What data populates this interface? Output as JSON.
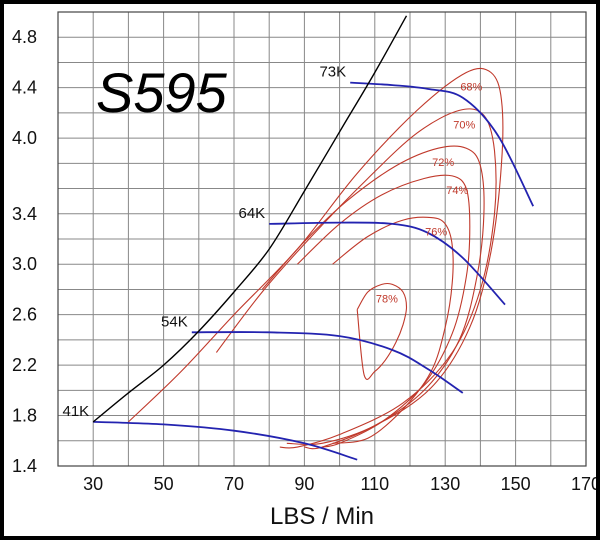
{
  "chart_data": {
    "type": "line",
    "title": "S595",
    "xlabel": "LBS / Min",
    "ylabel": "",
    "xlim": [
      20,
      170
    ],
    "ylim": [
      1.4,
      5.0
    ],
    "xticks": [
      "30",
      "50",
      "70",
      "90",
      "110",
      "130",
      "150",
      "170"
    ],
    "yticks": [
      "1.4",
      "1.8",
      "2.2",
      "2.6",
      "3.0",
      "3.4",
      "4.0",
      "4.4",
      "4.8"
    ],
    "grid": true,
    "colors": {
      "surge": "#000000",
      "efficiency": "#c0392b",
      "speed": "#2323b0"
    },
    "surge_line": {
      "x": [
        30,
        40,
        50,
        60,
        70,
        80,
        90,
        100,
        110,
        119
      ],
      "y": [
        1.75,
        1.98,
        2.2,
        2.47,
        2.78,
        3.12,
        3.58,
        4.05,
        4.52,
        4.97
      ]
    },
    "speed_lines": [
      {
        "label": "41K",
        "x": [
          30,
          50,
          70,
          90,
          105
        ],
        "y": [
          1.75,
          1.73,
          1.68,
          1.58,
          1.45
        ]
      },
      {
        "label": "54K",
        "x": [
          58,
          80,
          100,
          115,
          125,
          135
        ],
        "y": [
          2.46,
          2.46,
          2.43,
          2.32,
          2.17,
          1.98
        ]
      },
      {
        "label": "64K",
        "x": [
          80,
          100,
          115,
          125,
          135,
          147
        ],
        "y": [
          3.32,
          3.33,
          3.32,
          3.25,
          3.05,
          2.68
        ]
      },
      {
        "label": "73K",
        "x": [
          103,
          115,
          125,
          135,
          145,
          155
        ],
        "y": [
          4.44,
          4.42,
          4.39,
          4.32,
          4.02,
          3.46
        ]
      }
    ],
    "efficiency_islands": [
      {
        "label": "78%",
        "x": [
          105,
          108,
          112,
          115,
          118,
          119,
          118,
          116,
          113,
          110,
          107,
          105
        ],
        "y": [
          2.64,
          2.78,
          2.84,
          2.84,
          2.78,
          2.66,
          2.52,
          2.38,
          2.24,
          2.15,
          2.12,
          2.64
        ]
      },
      {
        "label": "76%",
        "x": [
          98,
          108,
          118,
          126,
          130,
          132,
          132,
          130,
          126,
          118,
          108,
          98
        ],
        "y": [
          3.0,
          3.22,
          3.35,
          3.37,
          3.32,
          3.15,
          2.85,
          2.5,
          2.15,
          1.85,
          1.62,
          1.58
        ]
      },
      {
        "label": "74%",
        "x": [
          88,
          100,
          112,
          124,
          132,
          136,
          137,
          136,
          132,
          124,
          112,
          100,
          95
        ],
        "y": [
          3.0,
          3.32,
          3.55,
          3.68,
          3.7,
          3.6,
          3.3,
          2.9,
          2.45,
          2.05,
          1.75,
          1.58,
          1.55
        ]
      },
      {
        "label": "72%",
        "x": [
          78,
          90,
          102,
          116,
          128,
          136,
          140,
          141,
          139,
          134,
          124,
          110,
          95,
          90
        ],
        "y": [
          2.8,
          3.18,
          3.5,
          3.78,
          3.92,
          3.92,
          3.78,
          3.4,
          2.9,
          2.4,
          2.0,
          1.72,
          1.55,
          1.55
        ]
      },
      {
        "label": "70%",
        "x": [
          65,
          78,
          92,
          108,
          122,
          134,
          141,
          144,
          144,
          140,
          132,
          118,
          100,
          88,
          83
        ],
        "y": [
          2.3,
          2.78,
          3.22,
          3.68,
          4.04,
          4.22,
          4.18,
          3.9,
          3.4,
          2.8,
          2.3,
          1.9,
          1.65,
          1.55,
          1.55
        ]
      },
      {
        "label": "68%",
        "x": [
          40,
          55,
          70,
          88,
          105,
          122,
          136,
          143,
          146,
          146,
          143,
          137,
          126,
          110,
          95,
          85
        ],
        "y": [
          1.75,
          2.15,
          2.6,
          3.12,
          3.72,
          4.22,
          4.52,
          4.52,
          4.3,
          3.8,
          3.1,
          2.5,
          2.02,
          1.72,
          1.58,
          1.58
        ]
      }
    ]
  }
}
